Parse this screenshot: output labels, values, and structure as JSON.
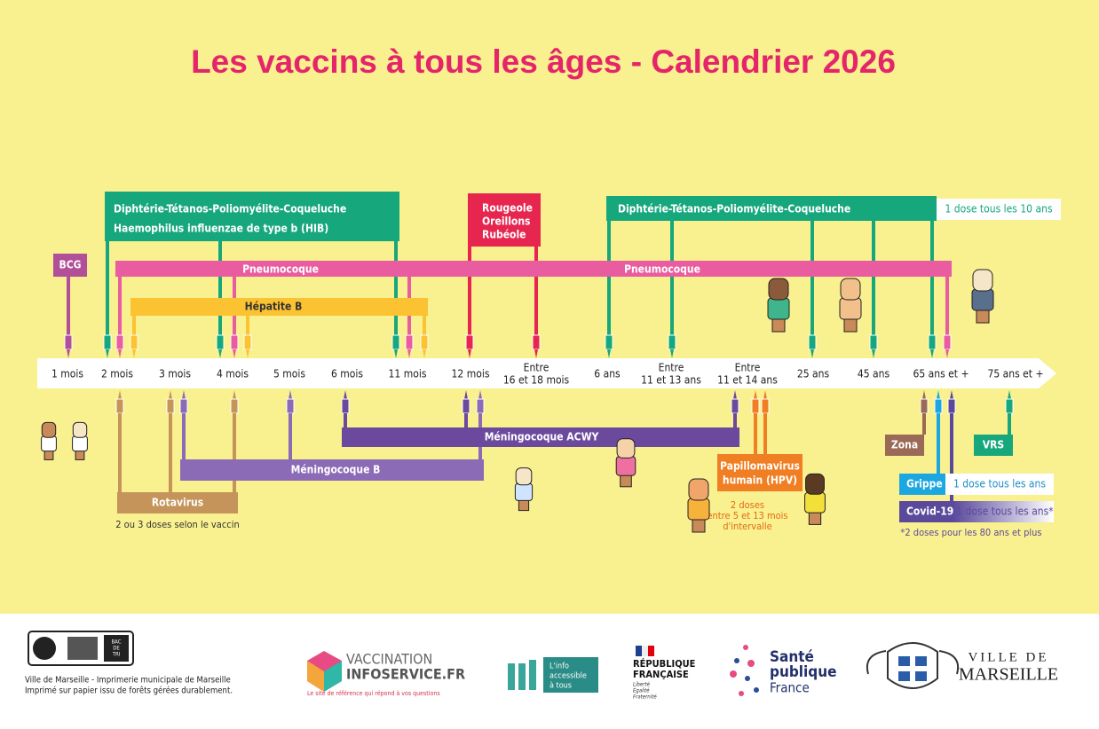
{
  "title": "Les vaccins à tous les âges - Calendrier 2026",
  "ages": [
    [
      "1 mois"
    ],
    [
      "2 mois"
    ],
    [
      "3 mois"
    ],
    [
      "4 mois"
    ],
    [
      "5 mois"
    ],
    [
      "6 mois"
    ],
    [
      "11 mois"
    ],
    [
      "12 mois"
    ],
    [
      "Entre",
      "16 et 18 mois"
    ],
    [
      "6 ans"
    ],
    [
      "Entre",
      "11 et 13 ans"
    ],
    [
      "Entre",
      "11 et 14 ans"
    ],
    [
      "25 ans"
    ],
    [
      "45 ans"
    ],
    [
      "65 ans et +"
    ],
    [
      "75 ans et +"
    ]
  ],
  "top": {
    "dtpc_hib": [
      "Diphtérie-Tétanos-Poliomyélite-Coqueluche",
      "Haemophilus influenzae de type b (HIB)"
    ],
    "ror": [
      "Rougeole",
      "Oreillons",
      "Rubéole"
    ],
    "bcg": "BCG",
    "pneumo": [
      "Pneumocoque",
      "Pneumocoque"
    ],
    "hepb": "Hépatite B",
    "dtpc_adult": "Diphtérie-Tétanos-Poliomyélite-Coqueluche",
    "dtpc_adult_note": "1 dose tous les 10 ans"
  },
  "bottom": {
    "rotavirus": "Rotavirus",
    "rotavirus_note": "2 ou 3 doses selon le vaccin",
    "menb": "Méningocoque B",
    "acwy": "Méningocoque ACWY",
    "hpv": [
      "Papillomavirus",
      "humain (HPV)"
    ],
    "hpv_note": [
      "2 doses",
      "entre 5 et 13 mois",
      "d'intervalle"
    ],
    "zona": "Zona",
    "vrs": "VRS",
    "grippe": "Grippe",
    "grippe_note": "1 dose tous les ans",
    "covid": "Covid-19",
    "covid_note": "1 dose tous les ans*",
    "footnote": "*2 doses pour les 80 ans et plus"
  },
  "footer": {
    "print": [
      "Ville de Marseille - Imprimerie municipale de Marseille",
      "Imprimé sur papier issu de forêts gérées durablement."
    ],
    "bac": [
      "BAC",
      "DE",
      "TRI"
    ],
    "vaccination": [
      "VACCINATION",
      "INFOSERVICE.FR",
      "Le site de référence qui répond à vos questions"
    ],
    "info": [
      "L'info",
      "accessible",
      "à tous"
    ],
    "republique": [
      "RÉPUBLIQUE",
      "FRANÇAISE"
    ],
    "devise": [
      "Liberté",
      "Égalité",
      "Fraternité"
    ],
    "sante": [
      "Santé",
      "publique",
      "France"
    ],
    "marseille": [
      "VILLE DE",
      "MARSEILLE"
    ]
  }
}
